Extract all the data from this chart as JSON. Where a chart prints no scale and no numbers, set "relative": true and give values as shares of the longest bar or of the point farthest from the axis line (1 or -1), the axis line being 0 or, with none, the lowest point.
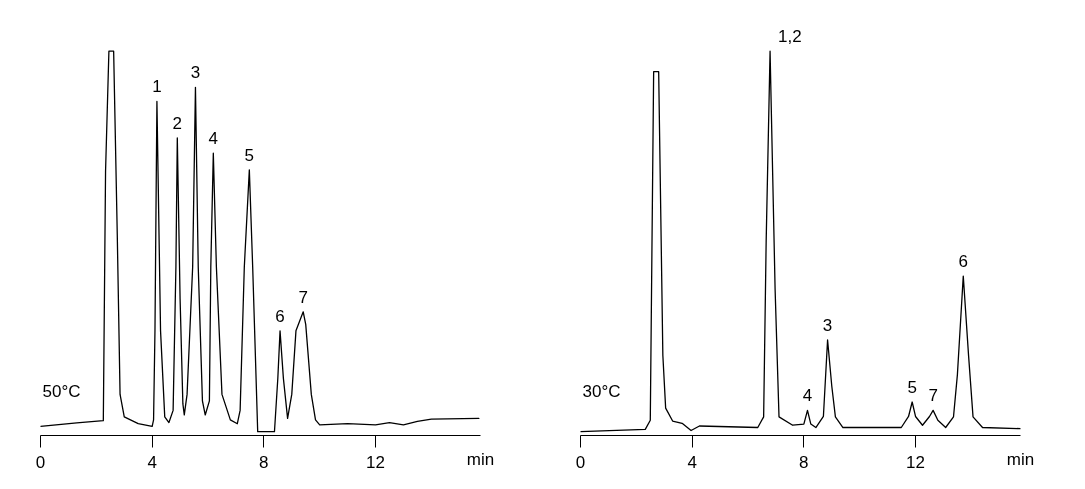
{
  "chart_data": [
    {
      "type": "line",
      "relative": true,
      "xlabel": "min",
      "xlim": [
        0,
        15.76
      ],
      "xticks": [
        0,
        4,
        8,
        12
      ],
      "series": [
        {
          "color": "#000000",
          "x": [
            0,
            1.3,
            2.25,
            2.33,
            2.45,
            2.62,
            2.75,
            2.85,
            3.0,
            3.5,
            4.0,
            4.05,
            4.1,
            4.17,
            4.3,
            4.45,
            4.6,
            4.75,
            4.85,
            4.9,
            5.0,
            5.1,
            5.15,
            5.25,
            5.45,
            5.55,
            5.65,
            5.8,
            5.9,
            6.05,
            6.1,
            6.19,
            6.3,
            6.5,
            6.8,
            7.05,
            7.15,
            7.3,
            7.48,
            7.6,
            7.78,
            8.38,
            8.5,
            8.58,
            8.7,
            8.85,
            9.0,
            9.15,
            9.41,
            9.5,
            9.7,
            9.85,
            10.0,
            11,
            12,
            12.5,
            13,
            13.5,
            14,
            15.7
          ],
          "values": [
            0.014,
            0.023,
            0.029,
            0.684,
            1,
            1,
            0.516,
            0.098,
            0.039,
            0.021,
            0.014,
            0.031,
            0.265,
            0.868,
            0.265,
            0.039,
            0.024,
            0.056,
            0.433,
            0.772,
            0.349,
            0.073,
            0.044,
            0.098,
            0.433,
            0.905,
            0.433,
            0.081,
            0.044,
            0.081,
            0.433,
            0.732,
            0.433,
            0.098,
            0.031,
            0.021,
            0.056,
            0.433,
            0.688,
            0.433,
            0,
            0,
            0.14,
            0.265,
            0.14,
            0.035,
            0.098,
            0.265,
            0.315,
            0.282,
            0.098,
            0.031,
            0.018,
            0.021,
            0.018,
            0.024,
            0.018,
            0.027,
            0.033,
            0.035
          ]
        }
      ],
      "annotations": [
        "50°C",
        {
          "text": "1",
          "x": 4.17,
          "y": 0.868
        },
        {
          "text": "2",
          "x": 4.9,
          "y": 0.772
        },
        {
          "text": "3",
          "x": 5.55,
          "y": 0.905
        },
        {
          "text": "4",
          "x": 6.19,
          "y": 0.732
        },
        {
          "text": "5",
          "x": 7.48,
          "y": 0.688
        },
        {
          "text": "6",
          "x": 8.58,
          "y": 0.265
        },
        {
          "text": "7",
          "x": 9.41,
          "y": 0.315
        }
      ]
    },
    {
      "type": "line",
      "relative": true,
      "xlabel": "min",
      "xlim": [
        0,
        15.76
      ],
      "xticks": [
        0,
        4,
        8,
        12
      ],
      "series": [
        {
          "color": "#000000",
          "x": [
            0,
            2.32,
            2.5,
            2.62,
            2.8,
            2.95,
            3.05,
            3.3,
            3.64,
            3.96,
            4.26,
            6.35,
            6.56,
            6.65,
            6.79,
            6.97,
            7.11,
            7.6,
            8.0,
            8.13,
            8.25,
            8.43,
            8.7,
            8.85,
            9.0,
            9.13,
            9.4,
            11.49,
            11.75,
            11.88,
            12.0,
            12.25,
            12.5,
            12.63,
            12.8,
            13.08,
            13.36,
            13.5,
            13.71,
            13.9,
            14.06,
            14.4,
            15.76
          ],
          "values": [
            0,
            0.006,
            0.03,
            0.946,
            0.946,
            0.2,
            0.062,
            0.028,
            0.022,
            0.003,
            0.015,
            0.011,
            0.039,
            0.5,
            1,
            0.375,
            0.039,
            0.017,
            0.02,
            0.056,
            0.02,
            0.011,
            0.04,
            0.241,
            0.12,
            0.039,
            0.011,
            0.011,
            0.04,
            0.078,
            0.04,
            0.017,
            0.04,
            0.056,
            0.03,
            0.011,
            0.039,
            0.15,
            0.409,
            0.2,
            0.039,
            0.011,
            0.008
          ]
        }
      ],
      "annotations": [
        "30°C",
        {
          "text": "1,2",
          "x": 6.79,
          "y": 1
        },
        {
          "text": "4",
          "x": 8.13,
          "y": 0.056
        },
        {
          "text": "3",
          "x": 8.85,
          "y": 0.241
        },
        {
          "text": "5",
          "x": 11.88,
          "y": 0.078
        },
        {
          "text": "7",
          "x": 12.63,
          "y": 0.056
        },
        {
          "text": "6",
          "x": 13.71,
          "y": 0.409
        }
      ]
    }
  ]
}
